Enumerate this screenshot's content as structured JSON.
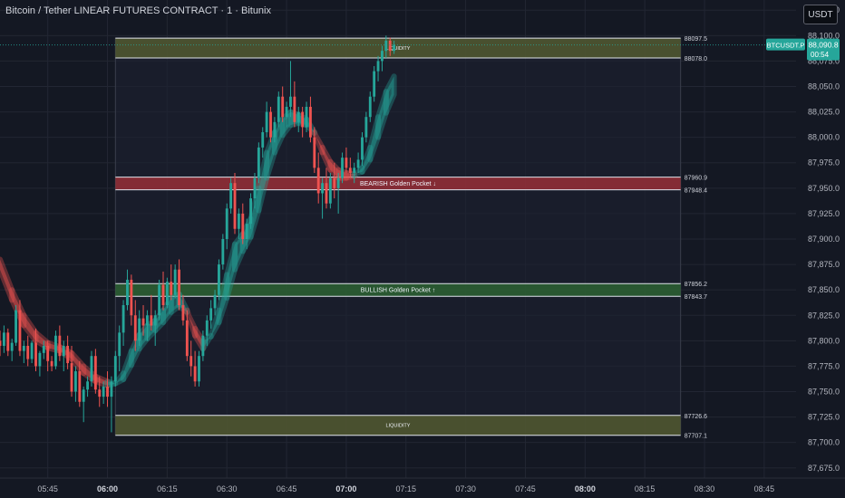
{
  "header": {
    "title": "Bitcoin / Tether LINEAR FUTURES CONTRACT · 1 · Bitunix",
    "currency_button": "USDT"
  },
  "colors": {
    "background": "#141823",
    "grid": "#222633",
    "bull": "#26a69a",
    "bear": "#ef5350",
    "text": "#b2b5be",
    "liquidity_zone": "#5a6232",
    "bearish_zone": "#a8323a",
    "bullish_zone": "#2f6b34"
  },
  "price_tag": {
    "symbol": "BTCUSDT.P",
    "price": "88,090.8",
    "countdown": "00:54"
  },
  "chart_data": {
    "type": "candlestick",
    "x_labels": [
      "05:45",
      "06:00",
      "06:15",
      "06:30",
      "06:45",
      "07:00",
      "07:15",
      "07:30",
      "07:45",
      "08:00",
      "08:15",
      "08:30",
      "08:45"
    ],
    "x_label_positions_minutes": [
      -15,
      0,
      15,
      30,
      45,
      60,
      75,
      90,
      105,
      120,
      135,
      150,
      165
    ],
    "y_ticks": [
      "88,125.0",
      "88,100.0",
      "88,075.0",
      "88,050.0",
      "88,025.0",
      "88,000.0",
      "87,975.0",
      "87,950.0",
      "87,925.0",
      "87,900.0",
      "87,875.0",
      "87,850.0",
      "87,825.0",
      "87,800.0",
      "87,775.0",
      "87,750.0",
      "87,725.0",
      "87,700.0",
      "87,675.0"
    ],
    "y_range": [
      87665,
      88135
    ],
    "x_range_minutes": [
      -27,
      173
    ],
    "zones": [
      {
        "name": "LIQUIDITY",
        "label": "LIQUIDITY",
        "top": 88097.5,
        "bottom": 88078.0,
        "top_label": "88097.5",
        "bottom_label": "88078.0",
        "kind": "liquidity"
      },
      {
        "name": "BEARISH Golden Pocket ↓",
        "label": "BEARISH Golden Pocket ↓",
        "top": 87960.9,
        "bottom": 87948.4,
        "top_label": "87960.9",
        "bottom_label": "87948.4",
        "kind": "bearish"
      },
      {
        "name": "BULLISH Golden Pocket ↑",
        "label": "BULLISH Golden Pocket ↑",
        "top": 87856.2,
        "bottom": 87843.7,
        "top_label": "87856.2",
        "bottom_label": "87843.7",
        "kind": "bullish"
      },
      {
        "name": "LIQUIDITY",
        "label": "LIQUIDITY",
        "top": 87726.6,
        "bottom": 87707.1,
        "top_label": "87726.6",
        "bottom_label": "87707.1",
        "kind": "liquidity"
      }
    ],
    "range_box_minutes": [
      2,
      144
    ],
    "current_price": 88090.8,
    "candles": [
      {
        "t": -27,
        "o": 87800,
        "h": 87810,
        "l": 87785,
        "c": 87795
      },
      {
        "t": -26,
        "o": 87795,
        "h": 87815,
        "l": 87788,
        "c": 87808
      },
      {
        "t": -25,
        "o": 87808,
        "h": 87812,
        "l": 87785,
        "c": 87790
      },
      {
        "t": -24,
        "o": 87790,
        "h": 87802,
        "l": 87780,
        "c": 87798
      },
      {
        "t": -23,
        "o": 87798,
        "h": 87835,
        "l": 87795,
        "c": 87830
      },
      {
        "t": -22,
        "o": 87830,
        "h": 87840,
        "l": 87785,
        "c": 87790
      },
      {
        "t": -21,
        "o": 87790,
        "h": 87800,
        "l": 87778,
        "c": 87795
      },
      {
        "t": -20,
        "o": 87795,
        "h": 87805,
        "l": 87775,
        "c": 87782
      },
      {
        "t": -19,
        "o": 87782,
        "h": 87800,
        "l": 87778,
        "c": 87798
      },
      {
        "t": -18,
        "o": 87798,
        "h": 87812,
        "l": 87770,
        "c": 87775
      },
      {
        "t": -17,
        "o": 87775,
        "h": 87790,
        "l": 87765,
        "c": 87788
      },
      {
        "t": -16,
        "o": 87788,
        "h": 87800,
        "l": 87782,
        "c": 87795
      },
      {
        "t": -15,
        "o": 87795,
        "h": 87800,
        "l": 87770,
        "c": 87780
      },
      {
        "t": -14,
        "o": 87780,
        "h": 87785,
        "l": 87770,
        "c": 87775
      },
      {
        "t": -13,
        "o": 87775,
        "h": 87810,
        "l": 87772,
        "c": 87805
      },
      {
        "t": -12,
        "o": 87805,
        "h": 87815,
        "l": 87780,
        "c": 87785
      },
      {
        "t": -11,
        "o": 87785,
        "h": 87800,
        "l": 87770,
        "c": 87795
      },
      {
        "t": -10,
        "o": 87795,
        "h": 87805,
        "l": 87772,
        "c": 87778
      },
      {
        "t": -9,
        "o": 87778,
        "h": 87795,
        "l": 87745,
        "c": 87750
      },
      {
        "t": -8,
        "o": 87750,
        "h": 87775,
        "l": 87740,
        "c": 87770
      },
      {
        "t": -7,
        "o": 87770,
        "h": 87780,
        "l": 87735,
        "c": 87740
      },
      {
        "t": -6,
        "o": 87740,
        "h": 87755,
        "l": 87720,
        "c": 87752
      },
      {
        "t": -5,
        "o": 87752,
        "h": 87765,
        "l": 87745,
        "c": 87760
      },
      {
        "t": -4,
        "o": 87760,
        "h": 87790,
        "l": 87755,
        "c": 87785
      },
      {
        "t": -3,
        "o": 87785,
        "h": 87792,
        "l": 87748,
        "c": 87752
      },
      {
        "t": -2,
        "o": 87752,
        "h": 87765,
        "l": 87735,
        "c": 87745
      },
      {
        "t": -1,
        "o": 87745,
        "h": 87760,
        "l": 87738,
        "c": 87755
      },
      {
        "t": 0,
        "o": 87755,
        "h": 87770,
        "l": 87735,
        "c": 87745
      },
      {
        "t": 1,
        "o": 87745,
        "h": 87765,
        "l": 87710,
        "c": 87760
      },
      {
        "t": 2,
        "o": 87760,
        "h": 87790,
        "l": 87755,
        "c": 87785
      },
      {
        "t": 3,
        "o": 87785,
        "h": 87815,
        "l": 87770,
        "c": 87808
      },
      {
        "t": 4,
        "o": 87808,
        "h": 87840,
        "l": 87795,
        "c": 87835
      },
      {
        "t": 5,
        "o": 87835,
        "h": 87870,
        "l": 87830,
        "c": 87860
      },
      {
        "t": 6,
        "o": 87860,
        "h": 87865,
        "l": 87815,
        "c": 87825
      },
      {
        "t": 7,
        "o": 87825,
        "h": 87840,
        "l": 87790,
        "c": 87800
      },
      {
        "t": 8,
        "o": 87800,
        "h": 87830,
        "l": 87795,
        "c": 87822
      },
      {
        "t": 9,
        "o": 87822,
        "h": 87835,
        "l": 87805,
        "c": 87815
      },
      {
        "t": 10,
        "o": 87815,
        "h": 87830,
        "l": 87800,
        "c": 87825
      },
      {
        "t": 11,
        "o": 87825,
        "h": 87845,
        "l": 87810,
        "c": 87815
      },
      {
        "t": 12,
        "o": 87815,
        "h": 87830,
        "l": 87795,
        "c": 87825
      },
      {
        "t": 13,
        "o": 87825,
        "h": 87860,
        "l": 87820,
        "c": 87855
      },
      {
        "t": 14,
        "o": 87855,
        "h": 87868,
        "l": 87830,
        "c": 87835
      },
      {
        "t": 15,
        "o": 87835,
        "h": 87862,
        "l": 87832,
        "c": 87858
      },
      {
        "t": 16,
        "o": 87858,
        "h": 87875,
        "l": 87840,
        "c": 87845
      },
      {
        "t": 17,
        "o": 87845,
        "h": 87875,
        "l": 87842,
        "c": 87870
      },
      {
        "t": 18,
        "o": 87870,
        "h": 87880,
        "l": 87830,
        "c": 87835
      },
      {
        "t": 19,
        "o": 87835,
        "h": 87845,
        "l": 87815,
        "c": 87820
      },
      {
        "t": 20,
        "o": 87820,
        "h": 87830,
        "l": 87780,
        "c": 87785
      },
      {
        "t": 21,
        "o": 87785,
        "h": 87800,
        "l": 87765,
        "c": 87775
      },
      {
        "t": 22,
        "o": 87775,
        "h": 87790,
        "l": 87755,
        "c": 87760
      },
      {
        "t": 23,
        "o": 87760,
        "h": 87790,
        "l": 87755,
        "c": 87785
      },
      {
        "t": 24,
        "o": 87785,
        "h": 87810,
        "l": 87780,
        "c": 87805
      },
      {
        "t": 25,
        "o": 87805,
        "h": 87825,
        "l": 87795,
        "c": 87820
      },
      {
        "t": 26,
        "o": 87820,
        "h": 87840,
        "l": 87812,
        "c": 87832
      },
      {
        "t": 27,
        "o": 87832,
        "h": 87850,
        "l": 87825,
        "c": 87845
      },
      {
        "t": 28,
        "o": 87845,
        "h": 87880,
        "l": 87840,
        "c": 87875
      },
      {
        "t": 29,
        "o": 87875,
        "h": 87905,
        "l": 87870,
        "c": 87900
      },
      {
        "t": 30,
        "o": 87900,
        "h": 87935,
        "l": 87890,
        "c": 87930
      },
      {
        "t": 31,
        "o": 87930,
        "h": 87960,
        "l": 87925,
        "c": 87955
      },
      {
        "t": 32,
        "o": 87955,
        "h": 87965,
        "l": 87905,
        "c": 87910
      },
      {
        "t": 33,
        "o": 87910,
        "h": 87930,
        "l": 87900,
        "c": 87925
      },
      {
        "t": 34,
        "o": 87925,
        "h": 87935,
        "l": 87895,
        "c": 87900
      },
      {
        "t": 35,
        "o": 87900,
        "h": 87920,
        "l": 87890,
        "c": 87915
      },
      {
        "t": 36,
        "o": 87915,
        "h": 87945,
        "l": 87910,
        "c": 87940
      },
      {
        "t": 37,
        "o": 87940,
        "h": 87965,
        "l": 87930,
        "c": 87960
      },
      {
        "t": 38,
        "o": 87960,
        "h": 87995,
        "l": 87955,
        "c": 87990
      },
      {
        "t": 39,
        "o": 87990,
        "h": 88010,
        "l": 87980,
        "c": 88005
      },
      {
        "t": 40,
        "o": 88005,
        "h": 88035,
        "l": 88000,
        "c": 88025
      },
      {
        "t": 41,
        "o": 88025,
        "h": 88030,
        "l": 87995,
        "c": 88000
      },
      {
        "t": 42,
        "o": 88000,
        "h": 88020,
        "l": 87995,
        "c": 88015
      },
      {
        "t": 43,
        "o": 88015,
        "h": 88045,
        "l": 88010,
        "c": 88040
      },
      {
        "t": 44,
        "o": 88040,
        "h": 88050,
        "l": 88015,
        "c": 88020
      },
      {
        "t": 45,
        "o": 88020,
        "h": 88035,
        "l": 88010,
        "c": 88030
      },
      {
        "t": 46,
        "o": 88030,
        "h": 88075,
        "l": 88020,
        "c": 88040
      },
      {
        "t": 47,
        "o": 88040,
        "h": 88055,
        "l": 88010,
        "c": 88015
      },
      {
        "t": 48,
        "o": 88015,
        "h": 88030,
        "l": 88005,
        "c": 88025
      },
      {
        "t": 49,
        "o": 88025,
        "h": 88030,
        "l": 88000,
        "c": 88010
      },
      {
        "t": 50,
        "o": 88010,
        "h": 88035,
        "l": 88005,
        "c": 88030
      },
      {
        "t": 51,
        "o": 88030,
        "h": 88040,
        "l": 87995,
        "c": 88000
      },
      {
        "t": 52,
        "o": 88000,
        "h": 88010,
        "l": 87965,
        "c": 87970
      },
      {
        "t": 53,
        "o": 87970,
        "h": 87985,
        "l": 87935,
        "c": 87945
      },
      {
        "t": 54,
        "o": 87945,
        "h": 87960,
        "l": 87920,
        "c": 87955
      },
      {
        "t": 55,
        "o": 87955,
        "h": 87970,
        "l": 87930,
        "c": 87935
      },
      {
        "t": 56,
        "o": 87935,
        "h": 87965,
        "l": 87930,
        "c": 87960
      },
      {
        "t": 57,
        "o": 87960,
        "h": 87975,
        "l": 87940,
        "c": 87950
      },
      {
        "t": 58,
        "o": 87950,
        "h": 87965,
        "l": 87925,
        "c": 87960
      },
      {
        "t": 59,
        "o": 87960,
        "h": 87985,
        "l": 87955,
        "c": 87980
      },
      {
        "t": 60,
        "o": 87980,
        "h": 87990,
        "l": 87965,
        "c": 87970
      },
      {
        "t": 61,
        "o": 87970,
        "h": 87980,
        "l": 87960,
        "c": 87965
      },
      {
        "t": 62,
        "o": 87965,
        "h": 87975,
        "l": 87955,
        "c": 87970
      },
      {
        "t": 63,
        "o": 87970,
        "h": 87985,
        "l": 87965,
        "c": 87978
      },
      {
        "t": 64,
        "o": 87978,
        "h": 88005,
        "l": 87972,
        "c": 88000
      },
      {
        "t": 65,
        "o": 88000,
        "h": 88025,
        "l": 87995,
        "c": 88020
      },
      {
        "t": 66,
        "o": 88020,
        "h": 88045,
        "l": 88015,
        "c": 88040
      },
      {
        "t": 67,
        "o": 88040,
        "h": 88070,
        "l": 88035,
        "c": 88065
      },
      {
        "t": 68,
        "o": 88065,
        "h": 88080,
        "l": 88055,
        "c": 88075
      },
      {
        "t": 69,
        "o": 88075,
        "h": 88090,
        "l": 88065,
        "c": 88085
      },
      {
        "t": 70,
        "o": 88085,
        "h": 88100,
        "l": 88078,
        "c": 88095
      },
      {
        "t": 71,
        "o": 88095,
        "h": 88098,
        "l": 88080,
        "c": 88085
      },
      {
        "t": 72,
        "o": 88085,
        "h": 88095,
        "l": 88082,
        "c": 88090.8
      }
    ],
    "ribbons": {
      "fast": [
        [
          -27,
          87870
        ],
        [
          -24,
          87840
        ],
        [
          -21,
          87815
        ],
        [
          -18,
          87800
        ],
        [
          -15,
          87793
        ],
        [
          -12,
          87790
        ],
        [
          -9,
          87782
        ],
        [
          -6,
          87768
        ],
        [
          -3,
          87760
        ],
        [
          0,
          87756
        ],
        [
          2,
          87758
        ],
        [
          4,
          87768
        ],
        [
          6,
          87790
        ],
        [
          8,
          87806
        ],
        [
          10,
          87815
        ],
        [
          12,
          87820
        ],
        [
          14,
          87830
        ],
        [
          16,
          87842
        ],
        [
          18,
          87846
        ],
        [
          20,
          87830
        ],
        [
          22,
          87805
        ],
        [
          24,
          87792
        ],
        [
          26,
          87805
        ],
        [
          28,
          87830
        ],
        [
          30,
          87865
        ],
        [
          32,
          87895
        ],
        [
          34,
          87905
        ],
        [
          36,
          87920
        ],
        [
          38,
          87950
        ],
        [
          40,
          87985
        ],
        [
          42,
          88005
        ],
        [
          44,
          88018
        ],
        [
          46,
          88025
        ],
        [
          48,
          88022
        ],
        [
          50,
          88018
        ],
        [
          52,
          88005
        ],
        [
          54,
          87985
        ],
        [
          56,
          87968
        ],
        [
          58,
          87960
        ],
        [
          60,
          87960
        ],
        [
          62,
          87962
        ],
        [
          64,
          87970
        ],
        [
          66,
          87990
        ],
        [
          68,
          88020
        ],
        [
          70,
          88045
        ],
        [
          72,
          88060
        ]
      ],
      "slow": [
        [
          -27,
          87880
        ],
        [
          -24,
          87850
        ],
        [
          -21,
          87825
        ],
        [
          -18,
          87808
        ],
        [
          -15,
          87798
        ],
        [
          -12,
          87794
        ],
        [
          -9,
          87788
        ],
        [
          -6,
          87775
        ],
        [
          -3,
          87765
        ],
        [
          0,
          87760
        ],
        [
          2,
          87758
        ],
        [
          4,
          87762
        ],
        [
          6,
          87776
        ],
        [
          8,
          87792
        ],
        [
          10,
          87802
        ],
        [
          12,
          87810
        ],
        [
          14,
          87818
        ],
        [
          16,
          87828
        ],
        [
          18,
          87834
        ],
        [
          20,
          87828
        ],
        [
          22,
          87812
        ],
        [
          24,
          87800
        ],
        [
          26,
          87804
        ],
        [
          28,
          87818
        ],
        [
          30,
          87842
        ],
        [
          32,
          87870
        ],
        [
          34,
          87888
        ],
        [
          36,
          87902
        ],
        [
          38,
          87928
        ],
        [
          40,
          87960
        ],
        [
          42,
          87985
        ],
        [
          44,
          88002
        ],
        [
          46,
          88012
        ],
        [
          48,
          88014
        ],
        [
          50,
          88012
        ],
        [
          52,
          88004
        ],
        [
          54,
          87990
        ],
        [
          56,
          87976
        ],
        [
          58,
          87968
        ],
        [
          60,
          87965
        ],
        [
          62,
          87964
        ],
        [
          64,
          87966
        ],
        [
          66,
          87978
        ],
        [
          68,
          88000
        ],
        [
          70,
          88024
        ],
        [
          72,
          88042
        ]
      ]
    }
  }
}
